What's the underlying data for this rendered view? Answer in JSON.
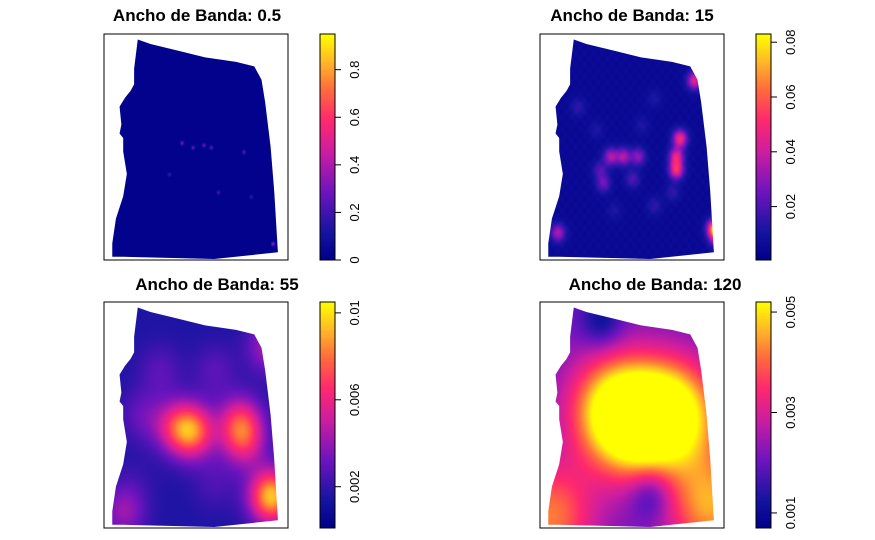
{
  "chart_data": [
    {
      "type": "heatmap",
      "title": "Ancho de Banda: 0.5",
      "bandwidth": 0.5,
      "scale": {
        "min": 0,
        "max": 0.95,
        "ticks": [
          0,
          0.2,
          0.4,
          0.6,
          0.8
        ],
        "tick_labels": [
          "0",
          "0.2",
          "0.4",
          "0.6",
          "0.8"
        ]
      },
      "hotspots": [
        {
          "x": 0.42,
          "y": 0.48,
          "v": 0.35
        },
        {
          "x": 0.48,
          "y": 0.5,
          "v": 0.3
        },
        {
          "x": 0.54,
          "y": 0.49,
          "v": 0.32
        },
        {
          "x": 0.58,
          "y": 0.5,
          "v": 0.28
        },
        {
          "x": 0.76,
          "y": 0.52,
          "v": 0.3
        },
        {
          "x": 0.92,
          "y": 0.93,
          "v": 0.45
        },
        {
          "x": 0.62,
          "y": 0.7,
          "v": 0.25
        },
        {
          "x": 0.35,
          "y": 0.62,
          "v": 0.22
        },
        {
          "x": 0.8,
          "y": 0.72,
          "v": 0.2
        }
      ]
    },
    {
      "type": "heatmap",
      "title": "Ancho de Banda: 15",
      "bandwidth": 15,
      "scale": {
        "min": 0.0005,
        "max": 0.083,
        "ticks": [
          0.02,
          0.04,
          0.06,
          0.08
        ],
        "tick_labels": [
          "0.02",
          "0.04",
          "0.06",
          "0.08"
        ]
      },
      "hotspots": [
        {
          "x": 0.84,
          "y": 0.2,
          "v": 0.045
        },
        {
          "x": 0.76,
          "y": 0.46,
          "v": 0.05
        },
        {
          "x": 0.74,
          "y": 0.54,
          "v": 0.045
        },
        {
          "x": 0.74,
          "y": 0.6,
          "v": 0.05
        },
        {
          "x": 0.38,
          "y": 0.54,
          "v": 0.035
        },
        {
          "x": 0.45,
          "y": 0.54,
          "v": 0.035
        },
        {
          "x": 0.53,
          "y": 0.54,
          "v": 0.03
        },
        {
          "x": 0.32,
          "y": 0.6,
          "v": 0.02
        },
        {
          "x": 0.34,
          "y": 0.66,
          "v": 0.025
        },
        {
          "x": 0.5,
          "y": 0.64,
          "v": 0.02
        },
        {
          "x": 0.09,
          "y": 0.88,
          "v": 0.035
        },
        {
          "x": 0.95,
          "y": 0.86,
          "v": 0.07
        },
        {
          "x": 0.96,
          "y": 0.9,
          "v": 0.04
        },
        {
          "x": 0.2,
          "y": 0.32,
          "v": 0.015
        },
        {
          "x": 0.62,
          "y": 0.28,
          "v": 0.012
        },
        {
          "x": 0.3,
          "y": 0.42,
          "v": 0.012
        },
        {
          "x": 0.62,
          "y": 0.76,
          "v": 0.015
        },
        {
          "x": 0.4,
          "y": 0.78,
          "v": 0.012
        },
        {
          "x": 0.72,
          "y": 0.7,
          "v": 0.015
        },
        {
          "x": 0.55,
          "y": 0.4,
          "v": 0.012
        }
      ]
    },
    {
      "type": "heatmap",
      "title": "Ancho de Banda: 55",
      "bandwidth": 55,
      "scale": {
        "min": 0.0001,
        "max": 0.0105,
        "ticks": [
          0.002,
          0.006,
          0.01
        ],
        "tick_labels": [
          "0.002",
          "0.006",
          "0.01"
        ]
      },
      "hotspots": [
        {
          "x": 0.48,
          "y": 0.57,
          "v": 0.0075
        },
        {
          "x": 0.38,
          "y": 0.55,
          "v": 0.005
        },
        {
          "x": 0.74,
          "y": 0.53,
          "v": 0.006
        },
        {
          "x": 0.76,
          "y": 0.62,
          "v": 0.005
        },
        {
          "x": 0.9,
          "y": 0.19,
          "v": 0.0045
        },
        {
          "x": 0.1,
          "y": 0.93,
          "v": 0.004
        },
        {
          "x": 0.91,
          "y": 0.86,
          "v": 0.0095
        },
        {
          "x": 0.3,
          "y": 0.3,
          "v": 0.0028
        },
        {
          "x": 0.6,
          "y": 0.3,
          "v": 0.0028
        },
        {
          "x": 0.2,
          "y": 0.5,
          "v": 0.003
        },
        {
          "x": 0.6,
          "y": 0.8,
          "v": 0.0025
        },
        {
          "x": 0.15,
          "y": 0.8,
          "v": 0.002
        }
      ]
    },
    {
      "type": "heatmap",
      "title": "Ancho de Banda: 120",
      "bandwidth": 120,
      "scale": {
        "min": 0.0007,
        "max": 0.0052,
        "ticks": [
          0.001,
          0.003,
          0.005
        ],
        "tick_labels": [
          "0.001",
          "0.003",
          "0.005"
        ]
      },
      "hotspots": [
        {
          "x": 0.48,
          "y": 0.53,
          "v": 0.005
        },
        {
          "x": 0.78,
          "y": 0.49,
          "v": 0.004
        },
        {
          "x": 0.35,
          "y": 0.45,
          "v": 0.0037
        },
        {
          "x": 0.64,
          "y": 0.5,
          "v": 0.0042
        },
        {
          "x": 0.05,
          "y": 0.95,
          "v": 0.0042
        },
        {
          "x": 0.93,
          "y": 0.9,
          "v": 0.0045
        },
        {
          "x": 0.2,
          "y": 0.25,
          "v": 0.002
        },
        {
          "x": 0.8,
          "y": 0.25,
          "v": 0.002
        }
      ],
      "coldspots": [
        {
          "x": 0.6,
          "y": 0.85,
          "v": 0.001
        },
        {
          "x": 0.33,
          "y": 0.08,
          "v": 0.001
        }
      ]
    }
  ]
}
